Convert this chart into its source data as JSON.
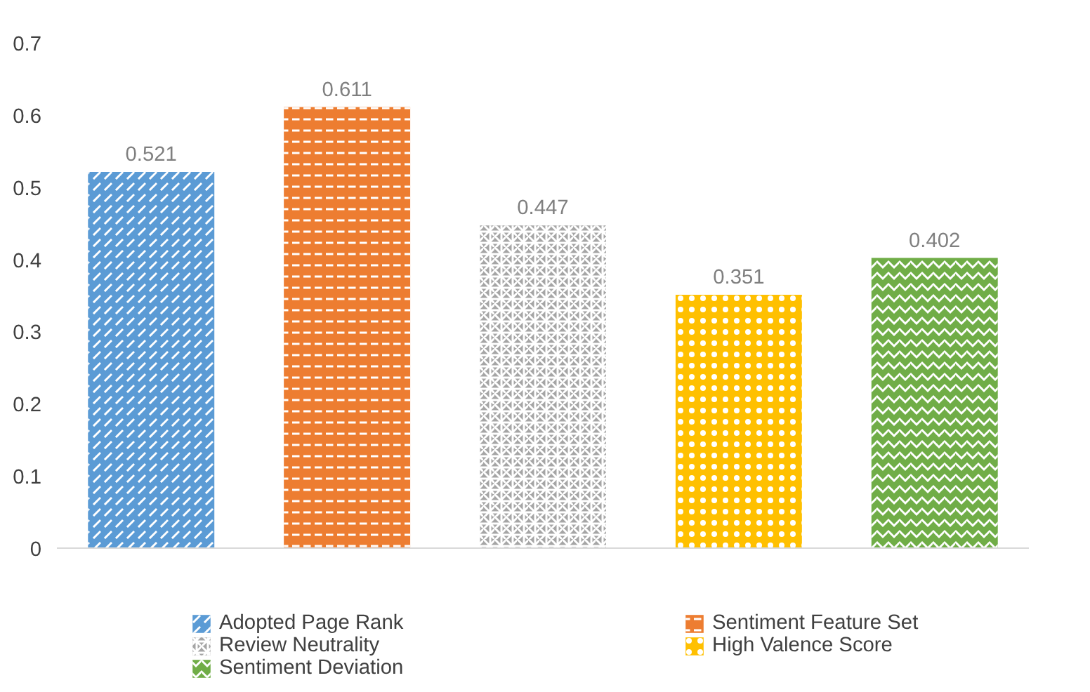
{
  "chart_data": {
    "type": "bar",
    "categories": [
      null
    ],
    "series": [
      {
        "name": "Adopted Page Rank",
        "color": "#5b9bd5",
        "values": [
          0.521
        ]
      },
      {
        "name": "Sentiment Feature Set",
        "color": "#ed7d31",
        "values": [
          0.611
        ]
      },
      {
        "name": "Review Neutrality",
        "color": "#a5a5a5",
        "values": [
          0.447
        ]
      },
      {
        "name": "High Valence Score",
        "color": "#ffc000",
        "values": [
          0.351
        ]
      },
      {
        "name": "Sentiment Deviation",
        "color": "#70ad47",
        "values": [
          0.402
        ]
      }
    ],
    "ylim": [
      0,
      0.7
    ],
    "yticks": [
      0,
      0.1,
      0.2,
      0.3,
      0.4,
      0.5,
      0.6,
      0.7
    ],
    "data_labels": true,
    "legend": "bottom",
    "grid": false
  }
}
